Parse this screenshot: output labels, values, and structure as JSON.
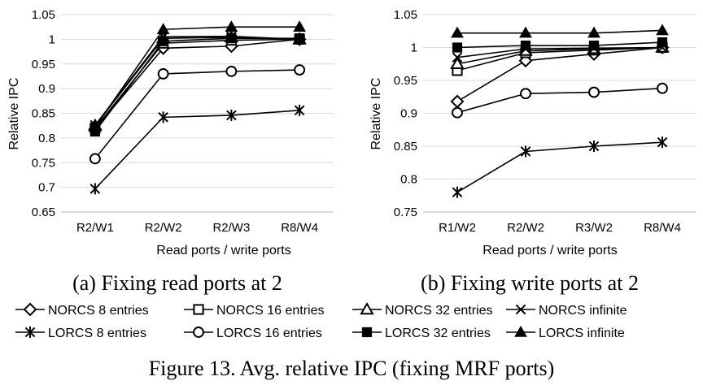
{
  "chart_data": [
    {
      "type": "line",
      "categories": [
        "R2/W1",
        "R2/W2",
        "R2/W3",
        "R8/W4"
      ],
      "xlabel": "Read ports / write ports",
      "ylabel": "Relative IPC",
      "ylim": [
        0.65,
        1.05
      ],
      "yticks": [
        "0.65",
        "0.7",
        "0.75",
        "0.8",
        "0.85",
        "0.9",
        "0.95",
        "1",
        "1.05"
      ],
      "grid": "horizontal",
      "caption": "(a) Fixing read ports at 2",
      "series": [
        {
          "name": "NORCS 8 entries",
          "values": [
            0.818,
            0.982,
            0.986,
            1.0
          ]
        },
        {
          "name": "NORCS 16 entries",
          "values": [
            0.82,
            0.992,
            0.998,
            1.0
          ]
        },
        {
          "name": "NORCS 32 entries",
          "values": [
            0.825,
            1.002,
            1.004,
            1.0
          ]
        },
        {
          "name": "NORCS infinite",
          "values": [
            0.826,
            1.005,
            1.006,
            1.0
          ]
        },
        {
          "name": "LORCS 8 entries",
          "values": [
            0.697,
            0.842,
            0.846,
            0.856
          ]
        },
        {
          "name": "LORCS 16 entries",
          "values": [
            0.758,
            0.93,
            0.935,
            0.938
          ]
        },
        {
          "name": "LORCS 32 entries",
          "values": [
            0.813,
            0.996,
            1.002,
            1.002
          ]
        },
        {
          "name": "LORCS infinite",
          "values": [
            0.822,
            1.02,
            1.025,
            1.025
          ]
        }
      ]
    },
    {
      "type": "line",
      "categories": [
        "R1/W2",
        "R2/W2",
        "R3/W2",
        "R8/W4"
      ],
      "xlabel": "Read ports / write ports",
      "ylabel": "Relative IPC",
      "ylim": [
        0.75,
        1.05
      ],
      "yticks": [
        "0.75",
        "0.8",
        "0.85",
        "0.9",
        "0.95",
        "1",
        "1.05"
      ],
      "grid": "horizontal",
      "caption": "(b) Fixing write ports at 2",
      "series": [
        {
          "name": "NORCS 8 entries",
          "values": [
            0.918,
            0.98,
            0.99,
            1.0
          ]
        },
        {
          "name": "NORCS 16 entries",
          "values": [
            0.965,
            0.992,
            0.996,
            1.0
          ]
        },
        {
          "name": "NORCS 32 entries",
          "values": [
            0.975,
            0.995,
            0.998,
            1.0
          ]
        },
        {
          "name": "NORCS infinite",
          "values": [
            0.985,
            0.998,
            0.999,
            1.0
          ]
        },
        {
          "name": "LORCS 8 entries",
          "values": [
            0.78,
            0.842,
            0.85,
            0.856
          ]
        },
        {
          "name": "LORCS 16 entries",
          "values": [
            0.901,
            0.93,
            0.932,
            0.938
          ]
        },
        {
          "name": "LORCS 32 entries",
          "values": [
            1.0,
            1.003,
            1.003,
            1.008
          ]
        },
        {
          "name": "LORCS infinite",
          "values": [
            1.022,
            1.022,
            1.022,
            1.026
          ]
        }
      ]
    }
  ],
  "legend": [
    {
      "label": "NORCS 8 entries",
      "marker": "diamond-open"
    },
    {
      "label": "NORCS 16 entries",
      "marker": "square-open"
    },
    {
      "label": "NORCS 32 entries",
      "marker": "triangle-open"
    },
    {
      "label": "NORCS infinite",
      "marker": "cross"
    },
    {
      "label": "LORCS 8 entries",
      "marker": "star"
    },
    {
      "label": "LORCS 16 entries",
      "marker": "circle-open"
    },
    {
      "label": "LORCS 32 entries",
      "marker": "square-filled"
    },
    {
      "label": "LORCS infinite",
      "marker": "triangle-filled"
    }
  ],
  "figure_caption": "Figure 13.    Avg. relative IPC (fixing MRF ports)",
  "colors": {
    "line": "#000000",
    "grid": "#d9d9d9"
  }
}
